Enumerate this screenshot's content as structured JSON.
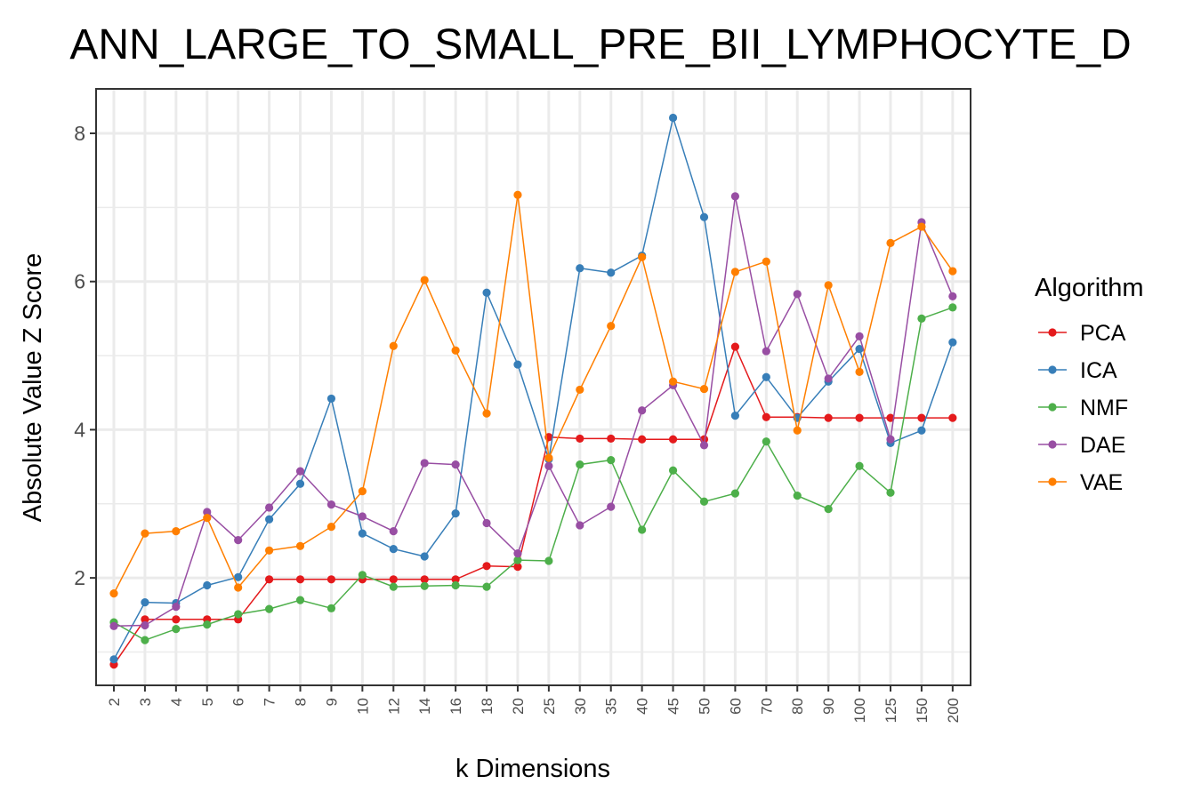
{
  "chart_data": {
    "type": "line",
    "title": "ANN_LARGE_TO_SMALL_PRE_BII_LYMPHOCYTE_D",
    "xlabel": "k Dimensions",
    "ylabel": "Absolute Value Z Score",
    "categories": [
      "2",
      "3",
      "4",
      "5",
      "6",
      "7",
      "8",
      "9",
      "10",
      "12",
      "14",
      "16",
      "18",
      "20",
      "25",
      "30",
      "35",
      "40",
      "45",
      "50",
      "60",
      "70",
      "80",
      "90",
      "100",
      "125",
      "150",
      "200"
    ],
    "ylim": [
      0.55,
      8.6
    ],
    "yticks": [
      2,
      4,
      6,
      8
    ],
    "grid": true,
    "legend": {
      "title": "Algorithm",
      "position": "right"
    },
    "series": [
      {
        "name": "PCA",
        "color": "#E41A1C",
        "values": [
          0.83,
          1.44,
          1.44,
          1.44,
          1.44,
          1.98,
          1.98,
          1.98,
          1.98,
          1.98,
          1.98,
          1.98,
          2.16,
          2.15,
          3.9,
          3.88,
          3.88,
          3.87,
          3.87,
          3.87,
          5.12,
          4.17,
          4.17,
          4.16,
          4.16,
          4.16,
          4.16,
          4.16
        ]
      },
      {
        "name": "ICA",
        "color": "#377EB8",
        "values": [
          0.9,
          1.67,
          1.66,
          1.9,
          2.01,
          2.79,
          3.27,
          4.42,
          2.6,
          2.39,
          2.29,
          2.87,
          5.85,
          4.88,
          3.6,
          6.18,
          6.12,
          6.35,
          8.21,
          6.87,
          4.19,
          4.71,
          4.16,
          4.65,
          5.09,
          3.82,
          3.99,
          5.18
        ]
      },
      {
        "name": "NMF",
        "color": "#4DAF4A",
        "values": [
          1.4,
          1.16,
          1.31,
          1.37,
          1.51,
          1.58,
          1.7,
          1.59,
          2.04,
          1.88,
          1.89,
          1.9,
          1.88,
          2.24,
          2.23,
          3.53,
          3.59,
          2.65,
          3.45,
          3.03,
          3.14,
          3.84,
          3.11,
          2.93,
          3.51,
          3.15,
          5.5,
          5.65
        ]
      },
      {
        "name": "DAE",
        "color": "#984EA3",
        "values": [
          1.35,
          1.36,
          1.61,
          2.89,
          2.51,
          2.95,
          3.44,
          2.99,
          2.83,
          2.63,
          3.55,
          3.53,
          2.74,
          2.33,
          3.51,
          2.71,
          2.96,
          4.26,
          4.6,
          3.79,
          7.15,
          5.06,
          5.83,
          4.69,
          5.26,
          3.87,
          6.8,
          5.8
        ]
      },
      {
        "name": "VAE",
        "color": "#FF7F00",
        "values": [
          1.79,
          2.6,
          2.63,
          2.81,
          1.87,
          2.37,
          2.43,
          2.69,
          3.17,
          5.13,
          6.02,
          5.07,
          4.22,
          7.17,
          3.62,
          4.54,
          5.4,
          6.33,
          4.65,
          4.55,
          6.13,
          6.27,
          3.99,
          5.95,
          4.78,
          6.52,
          6.74,
          6.14
        ]
      }
    ]
  }
}
